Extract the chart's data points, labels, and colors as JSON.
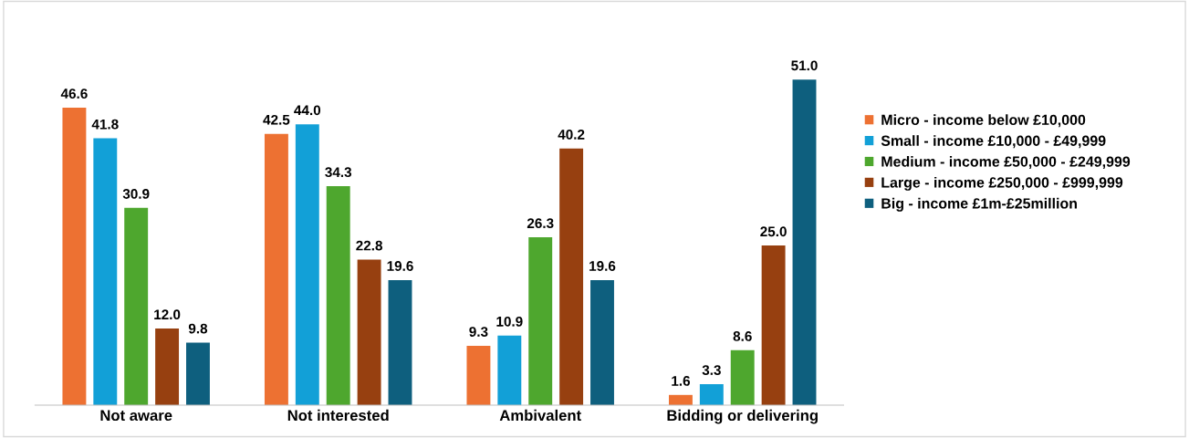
{
  "chart_data": {
    "type": "bar",
    "categories": [
      "Not aware",
      "Not interested",
      "Ambivalent",
      "Bidding or delivering"
    ],
    "series": [
      {
        "name": "Micro - income below £10,000",
        "color": "#ed7132",
        "values": [
          46.6,
          42.5,
          9.3,
          1.6
        ],
        "value_labels": [
          "46.6",
          "42.5",
          "9.3",
          "1.6"
        ]
      },
      {
        "name": "Small - income £10,000 - £49,999",
        "color": "#12a0d7",
        "values": [
          41.8,
          44.0,
          10.9,
          3.3
        ],
        "value_labels": [
          "41.8",
          "44.0",
          "10.9",
          "3.3"
        ]
      },
      {
        "name": "Medium - income £50,000 - £249,999",
        "color": "#4ea72e",
        "values": [
          30.9,
          34.3,
          26.3,
          8.6
        ],
        "value_labels": [
          "30.9",
          "34.3",
          "26.3",
          "8.6"
        ]
      },
      {
        "name": "Large - income £250,000 - £999,999",
        "color": "#974010",
        "values": [
          12.0,
          22.8,
          40.2,
          25.0
        ],
        "value_labels": [
          "12.0",
          "22.8",
          "40.2",
          "25.0"
        ]
      },
      {
        "name": "Big - income £1m-£25million",
        "color": "#0e5f7e",
        "values": [
          9.8,
          19.6,
          19.6,
          51.0
        ],
        "value_labels": [
          "9.8",
          "19.6",
          "19.6",
          "51.0"
        ]
      }
    ],
    "legend": "right",
    "tick_labels": "x"
  }
}
